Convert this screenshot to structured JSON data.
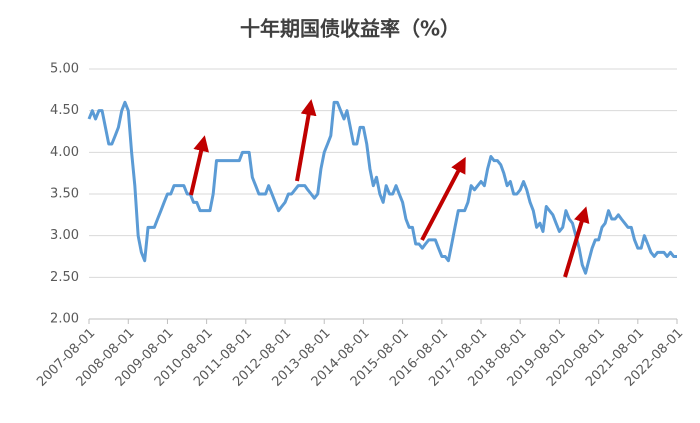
{
  "chart_data": {
    "type": "line",
    "title": "十年期国债收益率（%）",
    "x": [
      "2007-08-01",
      "2007-09-01",
      "2007-10-01",
      "2007-11-01",
      "2007-12-01",
      "2008-01-01",
      "2008-02-01",
      "2008-03-01",
      "2008-04-01",
      "2008-05-01",
      "2008-06-01",
      "2008-07-01",
      "2008-08-01",
      "2008-09-01",
      "2008-10-01",
      "2008-11-01",
      "2008-12-01",
      "2009-01-01",
      "2009-02-01",
      "2009-03-01",
      "2009-04-01",
      "2009-05-01",
      "2009-06-01",
      "2009-07-01",
      "2009-08-01",
      "2009-09-01",
      "2009-10-01",
      "2009-11-01",
      "2009-12-01",
      "2010-01-01",
      "2010-02-01",
      "2010-03-01",
      "2010-04-01",
      "2010-05-01",
      "2010-06-01",
      "2010-07-01",
      "2010-08-01",
      "2010-09-01",
      "2010-10-01",
      "2010-11-01",
      "2010-12-01",
      "2011-01-01",
      "2011-02-01",
      "2011-03-01",
      "2011-04-01",
      "2011-05-01",
      "2011-06-01",
      "2011-07-01",
      "2011-08-01",
      "2011-09-01",
      "2011-10-01",
      "2011-11-01",
      "2011-12-01",
      "2012-01-01",
      "2012-02-01",
      "2012-03-01",
      "2012-04-01",
      "2012-05-01",
      "2012-06-01",
      "2012-07-01",
      "2012-08-01",
      "2012-09-01",
      "2012-10-01",
      "2012-11-01",
      "2012-12-01",
      "2013-01-01",
      "2013-02-01",
      "2013-03-01",
      "2013-04-01",
      "2013-05-01",
      "2013-06-01",
      "2013-07-01",
      "2013-08-01",
      "2013-09-01",
      "2013-10-01",
      "2013-11-01",
      "2013-12-01",
      "2014-01-01",
      "2014-02-01",
      "2014-03-01",
      "2014-04-01",
      "2014-05-01",
      "2014-06-01",
      "2014-07-01",
      "2014-08-01",
      "2014-09-01",
      "2014-10-01",
      "2014-11-01",
      "2014-12-01",
      "2015-01-01",
      "2015-02-01",
      "2015-03-01",
      "2015-04-01",
      "2015-05-01",
      "2015-06-01",
      "2015-07-01",
      "2015-08-01",
      "2015-09-01",
      "2015-10-01",
      "2015-11-01",
      "2015-12-01",
      "2016-01-01",
      "2016-02-01",
      "2016-03-01",
      "2016-04-01",
      "2016-05-01",
      "2016-06-01",
      "2016-07-01",
      "2016-08-01",
      "2016-09-01",
      "2016-10-01",
      "2016-11-01",
      "2016-12-01",
      "2017-01-01",
      "2017-02-01",
      "2017-03-01",
      "2017-04-01",
      "2017-05-01",
      "2017-06-01",
      "2017-07-01",
      "2017-08-01",
      "2017-09-01",
      "2017-10-01",
      "2017-11-01",
      "2017-12-01",
      "2018-01-01",
      "2018-02-01",
      "2018-03-01",
      "2018-04-01",
      "2018-05-01",
      "2018-06-01",
      "2018-07-01",
      "2018-08-01",
      "2018-09-01",
      "2018-10-01",
      "2018-11-01",
      "2018-12-01",
      "2019-01-01",
      "2019-02-01",
      "2019-03-01",
      "2019-04-01",
      "2019-05-01",
      "2019-06-01",
      "2019-07-01",
      "2019-08-01",
      "2019-09-01",
      "2019-10-01",
      "2019-11-01",
      "2019-12-01",
      "2020-01-01",
      "2020-02-01",
      "2020-03-01",
      "2020-04-01",
      "2020-05-01",
      "2020-06-01",
      "2020-07-01",
      "2020-08-01",
      "2020-09-01",
      "2020-10-01",
      "2020-11-01",
      "2020-12-01",
      "2021-01-01",
      "2021-02-01",
      "2021-03-01",
      "2021-04-01",
      "2021-05-01",
      "2021-06-01",
      "2021-07-01",
      "2021-08-01",
      "2021-09-01",
      "2021-10-01",
      "2021-11-01",
      "2021-12-01",
      "2022-01-01",
      "2022-02-01",
      "2022-03-01",
      "2022-04-01",
      "2022-05-01",
      "2022-06-01",
      "2022-07-01",
      "2022-08-01"
    ],
    "values": [
      4.4,
      4.5,
      4.4,
      4.5,
      4.5,
      4.3,
      4.1,
      4.1,
      4.2,
      4.3,
      4.5,
      4.6,
      4.5,
      4.0,
      3.6,
      3.0,
      2.8,
      2.7,
      3.1,
      3.1,
      3.1,
      3.2,
      3.3,
      3.4,
      3.5,
      3.5,
      3.6,
      3.6,
      3.6,
      3.6,
      3.5,
      3.5,
      3.4,
      3.4,
      3.3,
      3.3,
      3.3,
      3.3,
      3.5,
      3.9,
      3.9,
      3.9,
      3.9,
      3.9,
      3.9,
      3.9,
      3.9,
      4.0,
      4.0,
      4.0,
      3.7,
      3.6,
      3.5,
      3.5,
      3.5,
      3.6,
      3.5,
      3.4,
      3.3,
      3.35,
      3.4,
      3.5,
      3.5,
      3.55,
      3.6,
      3.6,
      3.6,
      3.55,
      3.5,
      3.45,
      3.5,
      3.8,
      4.0,
      4.1,
      4.2,
      4.6,
      4.6,
      4.5,
      4.4,
      4.5,
      4.3,
      4.1,
      4.1,
      4.3,
      4.3,
      4.1,
      3.8,
      3.6,
      3.7,
      3.5,
      3.4,
      3.6,
      3.5,
      3.5,
      3.6,
      3.5,
      3.4,
      3.2,
      3.1,
      3.1,
      2.9,
      2.9,
      2.85,
      2.9,
      2.95,
      2.95,
      2.95,
      2.85,
      2.75,
      2.75,
      2.7,
      2.9,
      3.1,
      3.3,
      3.3,
      3.3,
      3.4,
      3.6,
      3.55,
      3.6,
      3.65,
      3.6,
      3.8,
      3.95,
      3.9,
      3.9,
      3.85,
      3.75,
      3.6,
      3.65,
      3.5,
      3.5,
      3.55,
      3.65,
      3.55,
      3.4,
      3.3,
      3.1,
      3.15,
      3.05,
      3.35,
      3.3,
      3.25,
      3.15,
      3.05,
      3.1,
      3.3,
      3.2,
      3.15,
      3.0,
      2.85,
      2.65,
      2.55,
      2.7,
      2.85,
      2.95,
      2.95,
      3.1,
      3.15,
      3.3,
      3.2,
      3.2,
      3.25,
      3.2,
      3.15,
      3.1,
      3.1,
      2.95,
      2.85,
      2.85,
      3.0,
      2.9,
      2.8,
      2.75,
      2.8,
      2.8,
      2.8,
      2.75,
      2.8,
      2.75,
      2.75
    ],
    "color": "#5b9bd5",
    "xlim": [
      "2007-08-01",
      "2022-08-01"
    ],
    "xticks": [
      "2007-08-01",
      "2008-08-01",
      "2009-08-01",
      "2010-08-01",
      "2011-08-01",
      "2012-08-01",
      "2013-08-01",
      "2014-08-01",
      "2015-08-01",
      "2016-08-01",
      "2017-08-01",
      "2018-08-01",
      "2019-08-01",
      "2020-08-01",
      "2021-08-01",
      "2022-08-01"
    ],
    "ylim": [
      2,
      5
    ],
    "yticks": [
      {
        "value": 2,
        "label": "2.00"
      },
      {
        "value": 2.5,
        "label": "2.50"
      },
      {
        "value": 3,
        "label": "3.00"
      },
      {
        "value": 3.5,
        "label": "3.50"
      },
      {
        "value": 4,
        "label": "4.00"
      },
      {
        "value": 4.5,
        "label": "4.50"
      },
      {
        "value": 5,
        "label": "5.00"
      }
    ],
    "grid": true
  }
}
